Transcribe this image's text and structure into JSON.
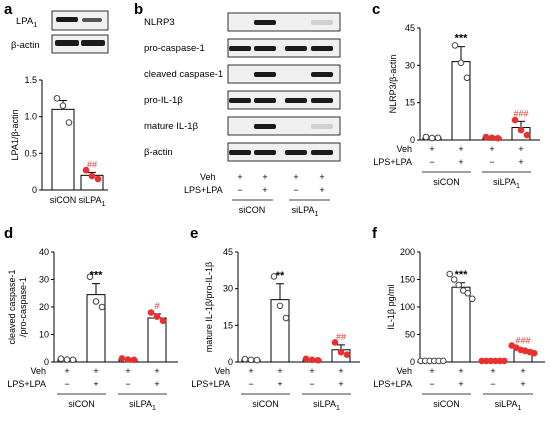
{
  "panel_letters": [
    "a",
    "b",
    "c",
    "d",
    "e",
    "f"
  ],
  "colors": {
    "control_marker": "#444444",
    "knockdown_marker": "#e8312f",
    "annotation_red": "#e8312f",
    "blot_bg": "#f0f0f0",
    "band": "#1a1a1a"
  },
  "panel_a_blot": {
    "rows": [
      "LPA",
      "β-actin"
    ],
    "lpa_subscript": "1"
  },
  "panel_b_blot": {
    "rows": [
      "NLRP3",
      "pro-caspase-1",
      "cleaved caspase-1",
      "pro-IL-1β",
      "mature IL-1β",
      "β-actin"
    ],
    "veh_signs": [
      "+",
      "+",
      "+",
      "+"
    ],
    "lps_signs": [
      "−",
      "+",
      "−",
      "+"
    ],
    "row_label_veh": "Veh",
    "row_label_lps": "LPS+LPA",
    "groups": [
      "siCON",
      "siLPA"
    ],
    "group_subscript": "1"
  },
  "shared": {
    "groups": [
      "siCON",
      "siLPA"
    ],
    "group_subscript": "1",
    "veh_label": "Veh",
    "lps_label": "LPS+LPA",
    "veh_signs": [
      "+",
      "+",
      "+",
      "+"
    ],
    "lps_signs": [
      "−",
      "+",
      "−",
      "+"
    ]
  },
  "chart_data": [
    {
      "panel": "a",
      "type": "bar",
      "categories": [
        "siCON",
        "siLPA1"
      ],
      "values": [
        1.1,
        0.2
      ],
      "errors": [
        0.12,
        0.04
      ],
      "points": [
        [
          1.25,
          1.15,
          0.92
        ],
        [
          0.27,
          0.19,
          0.15
        ]
      ],
      "ylabel": "LPA1/β-actin",
      "ylim": [
        0,
        1.5
      ],
      "yticks": [
        0,
        0.5,
        1.0,
        1.5
      ],
      "ytick_labels": [
        "0",
        "0.5",
        "1.0",
        "1.5"
      ],
      "annotations": [
        "",
        "##"
      ]
    },
    {
      "panel": "c",
      "type": "bar",
      "categories": [
        "siCON Veh",
        "siCON LPS+LPA",
        "siLPA1 Veh",
        "siLPA1 LPS+LPA"
      ],
      "values": [
        1,
        31.5,
        1,
        5
      ],
      "errors": [
        0.3,
        6,
        0.3,
        2.5
      ],
      "points": [
        [
          1.2,
          0.8,
          0.9
        ],
        [
          38,
          31,
          25
        ],
        [
          1.2,
          0.9,
          0.7
        ],
        [
          8,
          4,
          2
        ]
      ],
      "ylabel": "NLRP3/β-actin",
      "ylim": [
        0,
        45
      ],
      "yticks": [
        0,
        15,
        30,
        45
      ],
      "ytick_labels": [
        "0",
        "15",
        "30",
        "45"
      ],
      "annotations": [
        "",
        "***",
        "",
        "###"
      ]
    },
    {
      "panel": "d",
      "type": "bar",
      "categories": [
        "siCON Veh",
        "siCON LPS+LPA",
        "siLPA1 Veh",
        "siLPA1 LPS+LPA"
      ],
      "values": [
        1,
        24.5,
        1,
        16
      ],
      "errors": [
        0.3,
        4,
        0.3,
        1.5
      ],
      "points": [
        [
          1.2,
          0.9,
          0.8
        ],
        [
          31,
          22,
          20
        ],
        [
          1.3,
          0.9,
          0.8
        ],
        [
          18,
          16.5,
          15
        ]
      ],
      "ylabel": "cleaved caspase-1\n/pro-caspase-1",
      "ylim": [
        0,
        40
      ],
      "yticks": [
        0,
        10,
        20,
        30,
        40
      ],
      "ytick_labels": [
        "0",
        "10",
        "20",
        "30",
        "40"
      ],
      "annotations": [
        "",
        "***",
        "",
        "#"
      ]
    },
    {
      "panel": "e",
      "type": "bar",
      "categories": [
        "siCON Veh",
        "siCON LPS+LPA",
        "siLPA1 Veh",
        "siLPA1 LPS+LPA"
      ],
      "values": [
        1,
        25.5,
        1,
        5
      ],
      "errors": [
        0.3,
        6.5,
        0.3,
        2
      ],
      "points": [
        [
          1.2,
          0.9,
          0.8
        ],
        [
          35,
          23,
          18
        ],
        [
          1.3,
          0.9,
          0.7
        ],
        [
          8,
          4,
          3
        ]
      ],
      "ylabel": "mature IL-1β/pro-IL-1β",
      "ylim": [
        0,
        45
      ],
      "yticks": [
        0,
        15,
        30,
        45
      ],
      "ytick_labels": [
        "0",
        "15",
        "30",
        "45"
      ],
      "annotations": [
        "",
        "**",
        "",
        "##"
      ]
    },
    {
      "panel": "f",
      "type": "bar",
      "categories": [
        "siCON Veh",
        "siCON LPS+LPA",
        "siLPA1 Veh",
        "siLPA1 LPS+LPA"
      ],
      "values": [
        2,
        136,
        2,
        22
      ],
      "errors": [
        1,
        8,
        1,
        3
      ],
      "points": [
        [
          2,
          2,
          2,
          2,
          2,
          2
        ],
        [
          160,
          150,
          140,
          130,
          125,
          115
        ],
        [
          2,
          2,
          2,
          2,
          2,
          2
        ],
        [
          30,
          26,
          22,
          20,
          18,
          16
        ]
      ],
      "ylabel": "IL-1β pg/ml",
      "ylim": [
        0,
        200
      ],
      "yticks": [
        0,
        50,
        100,
        150,
        200
      ],
      "ytick_labels": [
        "0",
        "50",
        "100",
        "150",
        "200"
      ],
      "annotations": [
        "",
        "***",
        "",
        "###"
      ]
    }
  ]
}
